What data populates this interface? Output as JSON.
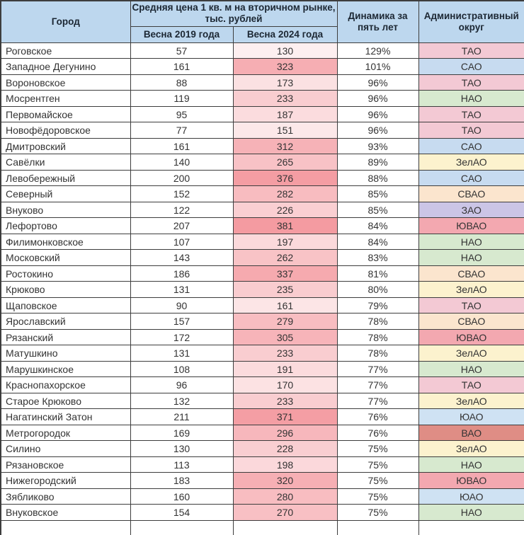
{
  "chart_data": {
    "type": "table",
    "title": "Средняя цена 1 кв. м на вторичном рынке, тыс. рублей",
    "header": {
      "city": "Город",
      "price_group": "Средняя цена 1 кв. м на вторичном рынке, тыс. рублей",
      "col_2019": "Весна 2019 года",
      "col_2024": "Весна 2024 года",
      "dynamics": "Динамика за пять лет",
      "district": "Административный округ"
    },
    "rows": [
      {
        "city": "Роговское",
        "price_2019": 57,
        "price_2024": 130,
        "dynamics_pct": 129,
        "district": "ТАО"
      },
      {
        "city": "Западное Дегунино",
        "price_2019": 161,
        "price_2024": 323,
        "dynamics_pct": 101,
        "district": "САО"
      },
      {
        "city": "Вороновское",
        "price_2019": 88,
        "price_2024": 173,
        "dynamics_pct": 96,
        "district": "ТАО"
      },
      {
        "city": "Мосрентген",
        "price_2019": 119,
        "price_2024": 233,
        "dynamics_pct": 96,
        "district": "НАО"
      },
      {
        "city": "Первомайское",
        "price_2019": 95,
        "price_2024": 187,
        "dynamics_pct": 96,
        "district": "ТАО"
      },
      {
        "city": "Новофёдоровское",
        "price_2019": 77,
        "price_2024": 151,
        "dynamics_pct": 96,
        "district": "ТАО"
      },
      {
        "city": "Дмитровский",
        "price_2019": 161,
        "price_2024": 312,
        "dynamics_pct": 93,
        "district": "САО"
      },
      {
        "city": "Савёлки",
        "price_2019": 140,
        "price_2024": 265,
        "dynamics_pct": 89,
        "district": "ЗелАО"
      },
      {
        "city": "Левобережный",
        "price_2019": 200,
        "price_2024": 376,
        "dynamics_pct": 88,
        "district": "САО"
      },
      {
        "city": "Северный",
        "price_2019": 152,
        "price_2024": 282,
        "dynamics_pct": 85,
        "district": "СВАО"
      },
      {
        "city": "Внуково",
        "price_2019": 122,
        "price_2024": 226,
        "dynamics_pct": 85,
        "district": "ЗАО"
      },
      {
        "city": "Лефортово",
        "price_2019": 207,
        "price_2024": 381,
        "dynamics_pct": 84,
        "district": "ЮВАО"
      },
      {
        "city": "Филимонковское",
        "price_2019": 107,
        "price_2024": 197,
        "dynamics_pct": 84,
        "district": "НАО"
      },
      {
        "city": "Московский",
        "price_2019": 143,
        "price_2024": 262,
        "dynamics_pct": 83,
        "district": "НАО"
      },
      {
        "city": "Ростокино",
        "price_2019": 186,
        "price_2024": 337,
        "dynamics_pct": 81,
        "district": "СВАО"
      },
      {
        "city": "Крюково",
        "price_2019": 131,
        "price_2024": 235,
        "dynamics_pct": 80,
        "district": "ЗелАО"
      },
      {
        "city": "Щаповское",
        "price_2019": 90,
        "price_2024": 161,
        "dynamics_pct": 79,
        "district": "ТАО"
      },
      {
        "city": "Ярославский",
        "price_2019": 157,
        "price_2024": 279,
        "dynamics_pct": 78,
        "district": "СВАО"
      },
      {
        "city": "Рязанский",
        "price_2019": 172,
        "price_2024": 305,
        "dynamics_pct": 78,
        "district": "ЮВАО"
      },
      {
        "city": "Матушкино",
        "price_2019": 131,
        "price_2024": 233,
        "dynamics_pct": 78,
        "district": "ЗелАО"
      },
      {
        "city": "Марушкинское",
        "price_2019": 108,
        "price_2024": 191,
        "dynamics_pct": 77,
        "district": "НАО"
      },
      {
        "city": "Краснопахорское",
        "price_2019": 96,
        "price_2024": 170,
        "dynamics_pct": 77,
        "district": "ТАО"
      },
      {
        "city": "Старое Крюково",
        "price_2019": 132,
        "price_2024": 233,
        "dynamics_pct": 77,
        "district": "ЗелАО"
      },
      {
        "city": "Нагатинский Затон",
        "price_2019": 211,
        "price_2024": 371,
        "dynamics_pct": 76,
        "district": "ЮАО"
      },
      {
        "city": "Метрогородок",
        "price_2019": 169,
        "price_2024": 296,
        "dynamics_pct": 76,
        "district": "ВАО"
      },
      {
        "city": "Силино",
        "price_2019": 130,
        "price_2024": 228,
        "dynamics_pct": 75,
        "district": "ЗелАО"
      },
      {
        "city": "Рязановское",
        "price_2019": 113,
        "price_2024": 198,
        "dynamics_pct": 75,
        "district": "НАО"
      },
      {
        "city": "Нижегородский",
        "price_2019": 183,
        "price_2024": 320,
        "dynamics_pct": 75,
        "district": "ЮВАО"
      },
      {
        "city": "Зябликово",
        "price_2019": 160,
        "price_2024": 280,
        "dynamics_pct": 75,
        "district": "ЮАО"
      },
      {
        "city": "Внуковское",
        "price_2019": 154,
        "price_2024": 270,
        "dynamics_pct": 75,
        "district": "НАО"
      }
    ]
  },
  "colors": {
    "header_bg": "#BDD7EE",
    "border": "#3D3D3D",
    "body_text": "#333333",
    "district": {
      "ТАО": "#F3C9D4",
      "САО": "#C7DBF0",
      "НАО": "#D7E9CF",
      "ЗелАО": "#FCF2CE",
      "СВАО": "#FBE5CE",
      "ЗАО": "#CBC5E6",
      "ЮВАО": "#F3A8B0",
      "ЮАО": "#CFE2F3",
      "ВАО": "#DF8D85"
    },
    "scale_2024": {
      "min_value": 130,
      "max_value": 381,
      "min_color": "#FDEFF0",
      "max_color": "#F49BA1"
    }
  }
}
